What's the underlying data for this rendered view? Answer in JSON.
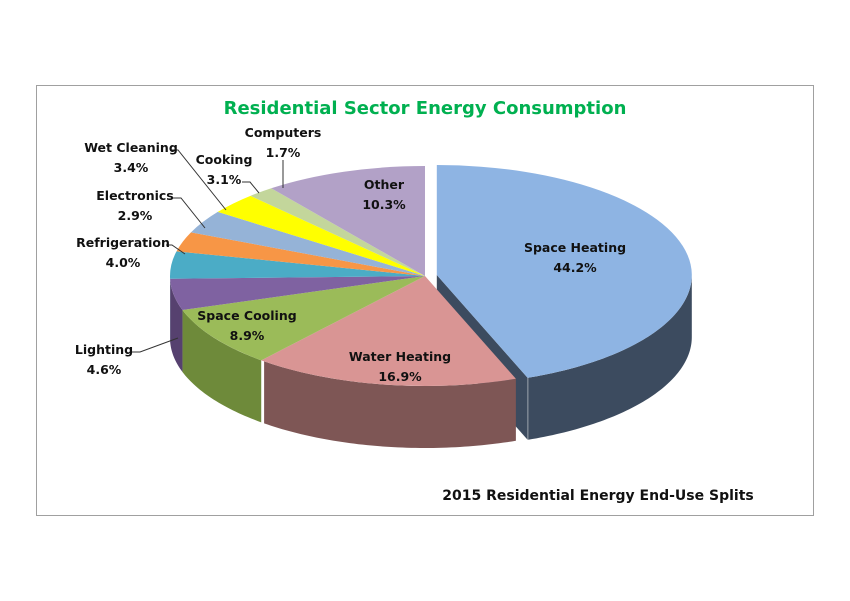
{
  "chart_data": {
    "type": "pie",
    "style": "3d-exploded",
    "title": "Residential Sector Energy Consumption",
    "subtitle": "2015 Residential Energy End-Use Splits",
    "slices": [
      {
        "label": "Space Heating",
        "value": 44.2,
        "display": "44.2%",
        "color": "#8EB4E3",
        "side": "#3C4B5F",
        "exploded": true
      },
      {
        "label": "Water Heating",
        "value": 16.9,
        "display": "16.9%",
        "color": "#D99594",
        "side": "#7E5655"
      },
      {
        "label": "Space Cooling",
        "value": 8.9,
        "display": "8.9%",
        "color": "#9BBB59",
        "side": "#6E8A3A"
      },
      {
        "label": "Lighting",
        "value": 4.6,
        "display": "4.6%",
        "color": "#7F62A1",
        "side": "#56416F"
      },
      {
        "label": "Refrigeration",
        "value": 4.0,
        "display": "4.0%",
        "color": "#4BACC6",
        "side": "#2F7A8E"
      },
      {
        "label": "Electronics",
        "value": 2.9,
        "display": "2.9%",
        "color": "#F79646",
        "side": "#B06A2F"
      },
      {
        "label": "Wet Cleaning",
        "value": 3.4,
        "display": "3.4%",
        "color": "#95B3D7",
        "side": "#6A7F99"
      },
      {
        "label": "Cooking",
        "value": 3.1,
        "display": "3.1%",
        "color": "#FFFF00",
        "side": "#B3B300"
      },
      {
        "label": "Computers",
        "value": 1.7,
        "display": "1.7%",
        "color": "#C3D69B",
        "side": "#8A986D"
      },
      {
        "label": "Other",
        "value": 10.3,
        "display": "10.3%",
        "color": "#B2A1C7",
        "side": "#7D718C"
      }
    ]
  }
}
